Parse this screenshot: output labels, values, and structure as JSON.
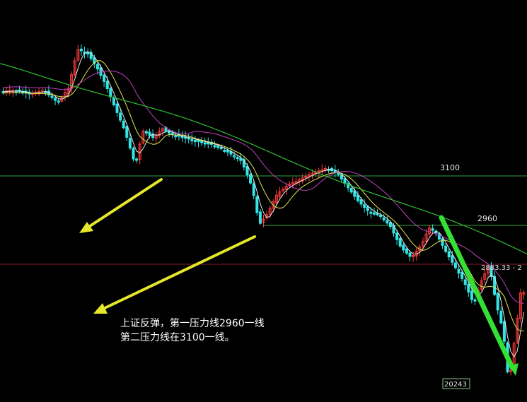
{
  "chart_data": {
    "type": "candlestick",
    "title": "",
    "xlabel": "",
    "ylabel": "",
    "ylim": [
      2000,
      3400
    ],
    "resistance_lines": [
      {
        "label": "3100",
        "value": 3100
      },
      {
        "label": "2960",
        "value": 2960
      }
    ],
    "reference_line": {
      "value": 2850
    },
    "price_label": "2883.33 - 2",
    "low_label": "20243",
    "annotation_lines": [
      "上证反弹，第一压力线2960一线",
      "第二压力线在3100一线。"
    ],
    "colors": {
      "background": "#000000",
      "up": "#ff3b3b",
      "down": "#33e6e6",
      "ma_short": "#e6e6e6",
      "ma_mid": "#e6e64d",
      "ma_long": "#c040c0",
      "ma_longest": "#2fbf2f",
      "resistance_line": "#2e9e3a",
      "reference_line": "#8a1f2a",
      "arrow_yellow": "#e6e62a",
      "trend_green": "#34e034"
    }
  }
}
